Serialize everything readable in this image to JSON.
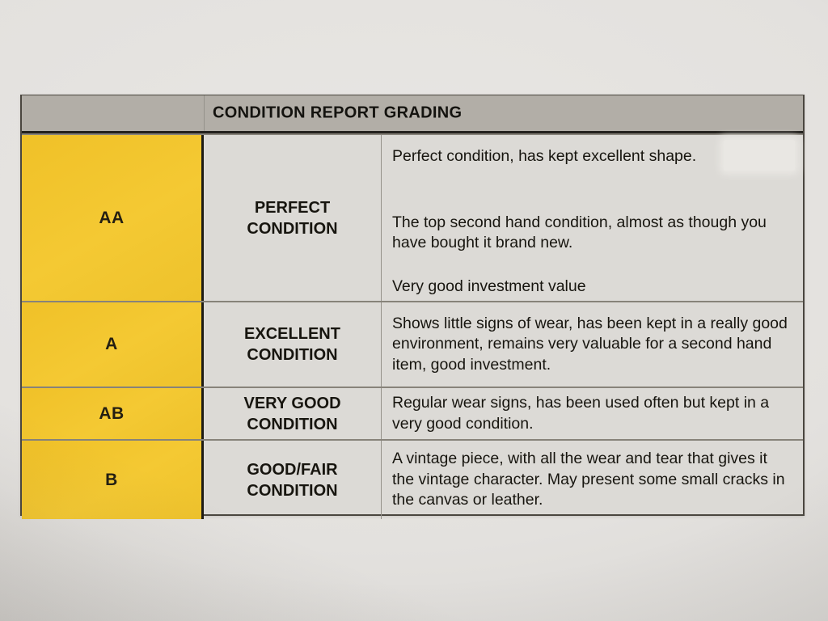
{
  "document": {
    "kind": "photographed printed table",
    "colors": {
      "paper": "#e3e1de",
      "header_bar": "#b2aea7",
      "grade_column_yellow": "#f2c52f",
      "cell_background": "#dcdad6",
      "print_text": "#17150f"
    },
    "table": {
      "header": {
        "title": "CONDITION REPORT GRADING"
      },
      "rows": [
        {
          "grade": "AA",
          "condition_lines": [
            "PERFECT",
            "CONDITION"
          ],
          "description_paragraphs": [
            "Perfect condition, has kept excellent shape.",
            "The top second hand condition, almost as though you have bought it brand new.",
            "Very good investment value"
          ]
        },
        {
          "grade": "A",
          "condition_lines": [
            "EXCELLENT",
            "CONDITION"
          ],
          "description_paragraphs": [
            "Shows little signs of wear, has been kept in a really good environment, remains very valuable for a second hand item, good investment."
          ]
        },
        {
          "grade": "AB",
          "condition_lines": [
            "VERY GOOD",
            "CONDITION"
          ],
          "description_paragraphs": [
            "Regular wear signs, has been used often but kept in a very good condition."
          ]
        },
        {
          "grade": "B",
          "condition_lines": [
            "GOOD/FAIR",
            "CONDITION"
          ],
          "description_paragraphs": [
            "A vintage piece, with all the wear and tear that gives it the vintage character. May present some small cracks in the canvas or leather."
          ]
        }
      ]
    }
  }
}
